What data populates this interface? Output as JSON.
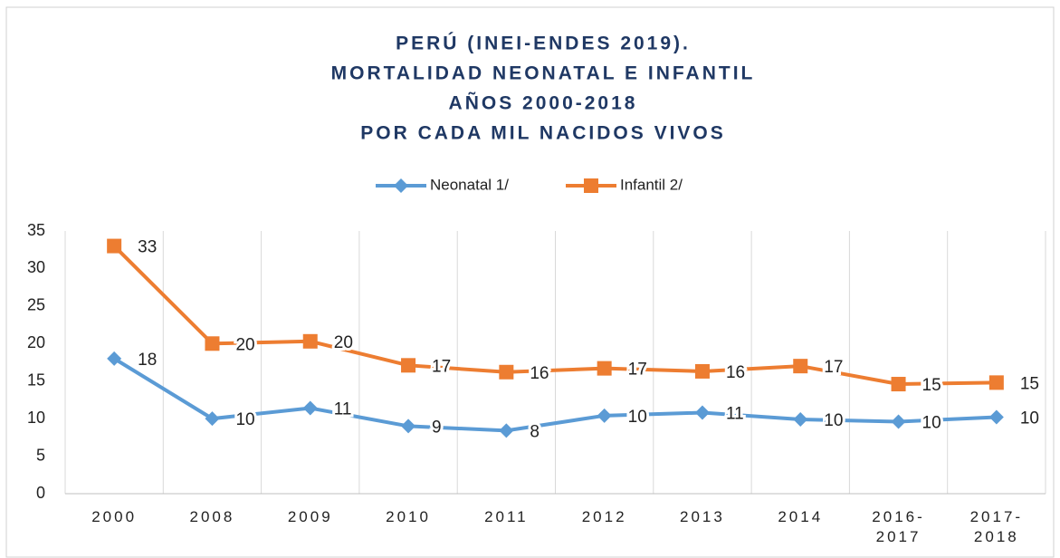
{
  "chart_data": {
    "type": "line",
    "title": [
      "PERÚ (INEI-ENDES 2019).",
      "MORTALIDAD NEONATAL E INFANTIL",
      "AÑOS 2000-2018",
      "POR CADA MIL NACIDOS VIVOS"
    ],
    "categories": [
      "2000",
      "2008",
      "2009",
      "2010",
      "2011",
      "2012",
      "2013",
      "2014",
      "2016-2017",
      "2017-2018"
    ],
    "series": [
      {
        "name": "Neonatal 1/",
        "color": "#5b9bd5",
        "marker": "diamond",
        "values": [
          18,
          10,
          11.4,
          9,
          8.4,
          10.4,
          10.8,
          9.9,
          9.6,
          10.2
        ],
        "value_labels": [
          "18",
          "10",
          "11",
          "9",
          "8",
          "10",
          "11",
          "10",
          "10",
          "10"
        ]
      },
      {
        "name": "Infantil 2/",
        "color": "#ed7d31",
        "marker": "square",
        "values": [
          33,
          20,
          20.3,
          17.1,
          16.2,
          16.7,
          16.3,
          17,
          14.6,
          14.8
        ],
        "value_labels": [
          "33",
          "20",
          "20",
          "17",
          "16",
          "17",
          "16",
          "17",
          "15",
          "15"
        ]
      }
    ],
    "ylim": [
      0,
      35
    ],
    "yticks": [
      0,
      5,
      10,
      15,
      20,
      25,
      30,
      35
    ],
    "vertical_grid": true,
    "legend": "top"
  }
}
